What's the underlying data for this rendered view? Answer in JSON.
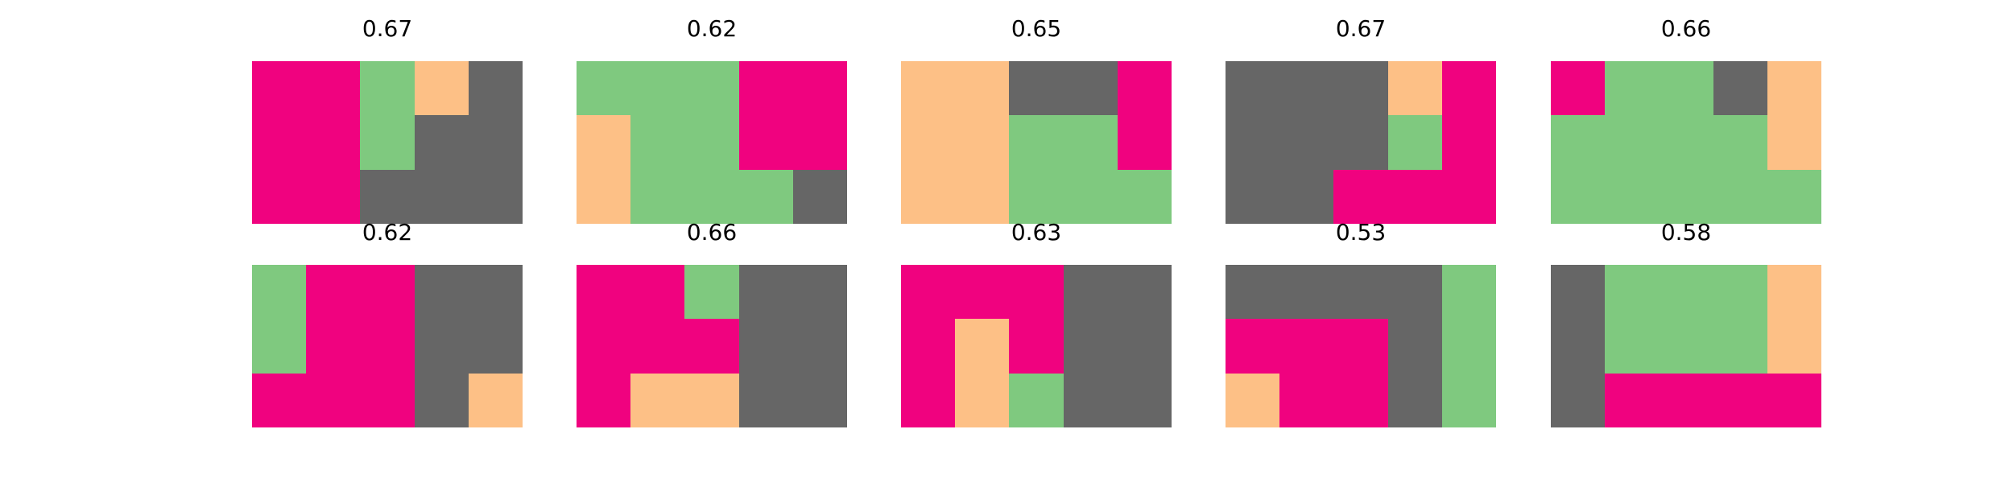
{
  "palette": {
    "pink": "#f0027f",
    "green": "#7fc97f",
    "peach": "#fdc086",
    "gray": "#666666"
  },
  "panels": [
    {
      "score": "0.67",
      "grid": [
        [
          "pink",
          "pink",
          "green",
          "peach",
          "gray"
        ],
        [
          "pink",
          "pink",
          "green",
          "gray",
          "gray"
        ],
        [
          "pink",
          "pink",
          "gray",
          "gray",
          "gray"
        ]
      ]
    },
    {
      "score": "0.62",
      "grid": [
        [
          "green",
          "green",
          "green",
          "pink",
          "pink"
        ],
        [
          "peach",
          "green",
          "green",
          "pink",
          "pink"
        ],
        [
          "peach",
          "green",
          "green",
          "green",
          "gray"
        ]
      ]
    },
    {
      "score": "0.65",
      "grid": [
        [
          "peach",
          "peach",
          "gray",
          "gray",
          "pink"
        ],
        [
          "peach",
          "peach",
          "green",
          "green",
          "pink"
        ],
        [
          "peach",
          "peach",
          "green",
          "green",
          "green"
        ]
      ]
    },
    {
      "score": "0.67",
      "grid": [
        [
          "gray",
          "gray",
          "gray",
          "peach",
          "pink"
        ],
        [
          "gray",
          "gray",
          "gray",
          "green",
          "pink"
        ],
        [
          "gray",
          "gray",
          "pink",
          "pink",
          "pink"
        ]
      ]
    },
    {
      "score": "0.66",
      "grid": [
        [
          "pink",
          "green",
          "green",
          "gray",
          "peach"
        ],
        [
          "green",
          "green",
          "green",
          "green",
          "peach"
        ],
        [
          "green",
          "green",
          "green",
          "green",
          "green"
        ]
      ]
    },
    {
      "score": "0.62",
      "grid": [
        [
          "green",
          "pink",
          "pink",
          "gray",
          "gray"
        ],
        [
          "green",
          "pink",
          "pink",
          "gray",
          "gray"
        ],
        [
          "pink",
          "pink",
          "pink",
          "gray",
          "peach"
        ]
      ]
    },
    {
      "score": "0.66",
      "grid": [
        [
          "pink",
          "pink",
          "green",
          "gray",
          "gray"
        ],
        [
          "pink",
          "pink",
          "pink",
          "gray",
          "gray"
        ],
        [
          "pink",
          "peach",
          "peach",
          "gray",
          "gray"
        ]
      ]
    },
    {
      "score": "0.63",
      "grid": [
        [
          "pink",
          "pink",
          "pink",
          "gray",
          "gray"
        ],
        [
          "pink",
          "peach",
          "pink",
          "gray",
          "gray"
        ],
        [
          "pink",
          "peach",
          "green",
          "gray",
          "gray"
        ]
      ]
    },
    {
      "score": "0.53",
      "grid": [
        [
          "gray",
          "gray",
          "gray",
          "gray",
          "green"
        ],
        [
          "pink",
          "pink",
          "pink",
          "gray",
          "green"
        ],
        [
          "peach",
          "pink",
          "pink",
          "gray",
          "green"
        ]
      ]
    },
    {
      "score": "0.58",
      "grid": [
        [
          "gray",
          "green",
          "green",
          "green",
          "peach"
        ],
        [
          "gray",
          "green",
          "green",
          "green",
          "peach"
        ],
        [
          "gray",
          "pink",
          "pink",
          "pink",
          "pink"
        ]
      ]
    }
  ]
}
